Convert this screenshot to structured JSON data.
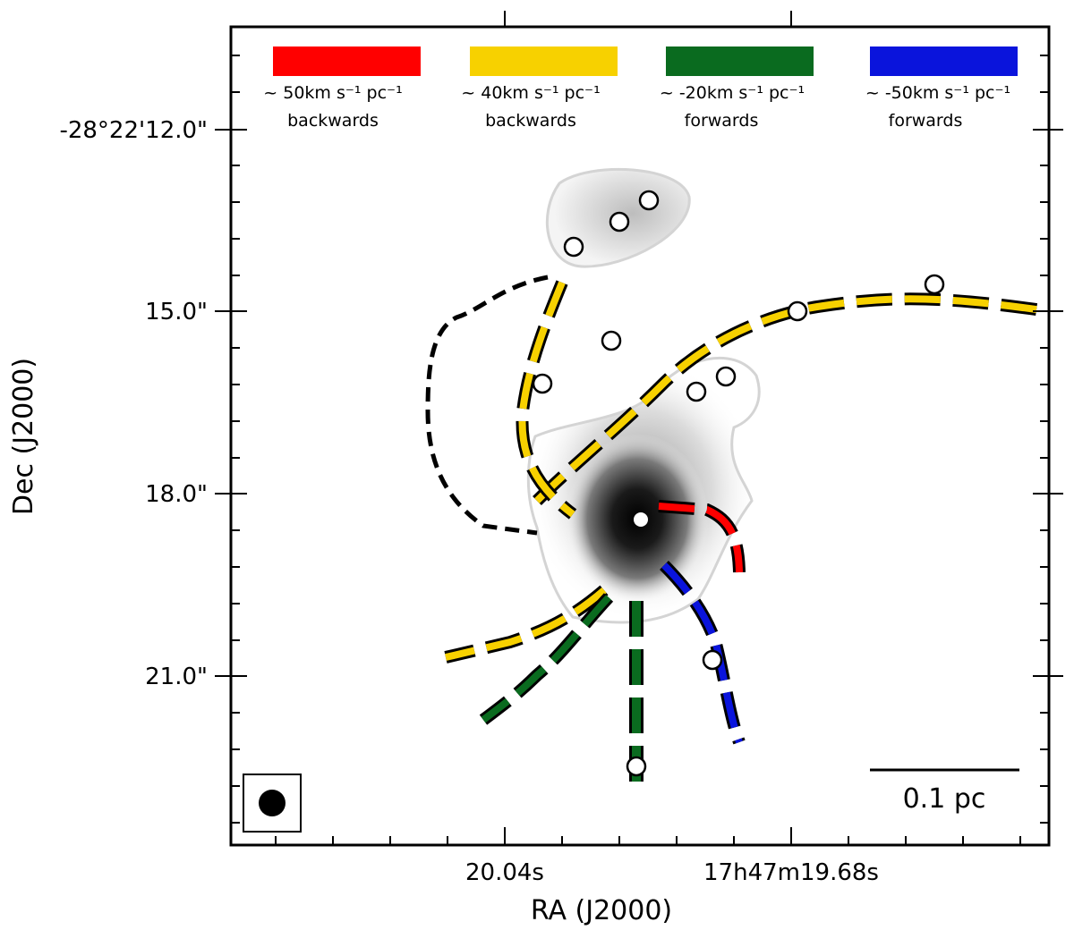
{
  "chart_data": {
    "type": "scatter",
    "title": "",
    "xlabel": "RA (J2000)",
    "ylabel": "Dec (J2000)",
    "x_tick_labels": [
      "20.04s",
      "17h47m19.68s"
    ],
    "y_tick_labels": [
      "-28°22'12.0\"",
      "15.0\"",
      "18.0\"",
      "21.0\""
    ],
    "legend": [
      {
        "color": "#ff0000",
        "line1": "~ 50km s⁻¹ pc⁻¹",
        "line2": "backwards"
      },
      {
        "color": "#f7d100",
        "line1": "~ 40km s⁻¹ pc⁻¹",
        "line2": "backwards"
      },
      {
        "color": "#0a6b1f",
        "line1": "~ -20km s⁻¹ pc⁻¹",
        "line2": "forwards"
      },
      {
        "color": "#0a14dc",
        "line1": "~ -50km s⁻¹ pc⁻¹",
        "line2": "forwards"
      }
    ],
    "scalebar_label": "0.1 pc",
    "beam": "synthesized beam ellipse"
  },
  "colors": {
    "red": "#ff0000",
    "yellow": "#f7d100",
    "green": "#0a6b1f",
    "blue": "#0a14dc",
    "black": "#000000",
    "contour": "#d4d4d4"
  }
}
